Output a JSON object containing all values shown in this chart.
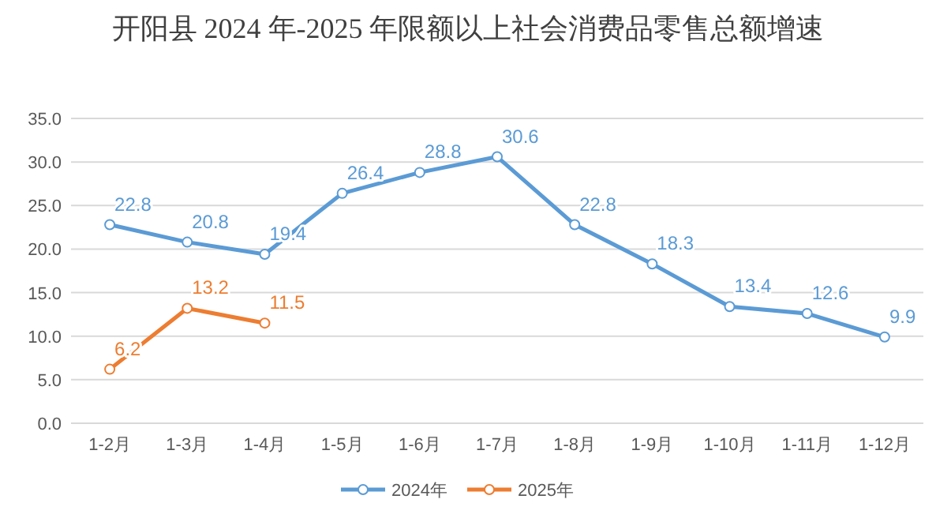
{
  "chart_data": {
    "type": "line",
    "title": "开阳县 2024 年-2025 年限额以上社会消费品零售总额增速",
    "categories": [
      "1-2月",
      "1-3月",
      "1-4月",
      "1-5月",
      "1-6月",
      "1-7月",
      "1-8月",
      "1-9月",
      "1-10月",
      "1-11月",
      "1-12月"
    ],
    "series": [
      {
        "name": "2024年",
        "color": "#5b9bd5",
        "values": [
          22.8,
          20.8,
          19.4,
          26.4,
          28.8,
          30.6,
          22.8,
          18.3,
          13.4,
          12.6,
          9.9
        ]
      },
      {
        "name": "2025年",
        "color": "#ed7d31",
        "values": [
          6.2,
          13.2,
          11.5,
          null,
          null,
          null,
          null,
          null,
          null,
          null,
          null
        ]
      }
    ],
    "ylim": [
      0,
      35
    ],
    "yticks": [
      {
        "value": 0,
        "label": "0.0"
      },
      {
        "value": 5,
        "label": "5.0"
      },
      {
        "value": 10,
        "label": "10.0"
      },
      {
        "value": 15,
        "label": "15.0"
      },
      {
        "value": 20,
        "label": "20.0"
      },
      {
        "value": 25,
        "label": "25.0"
      },
      {
        "value": 30,
        "label": "30.0"
      },
      {
        "value": 35,
        "label": "35.0"
      }
    ],
    "grid": "y",
    "legend": "bottom",
    "marker": "circle",
    "line_style": "solid",
    "data_labels": true
  }
}
